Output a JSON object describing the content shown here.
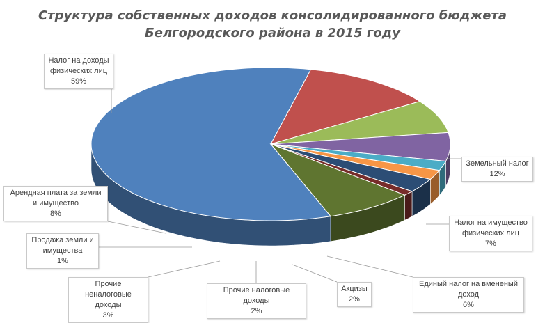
{
  "chart_data": {
    "type": "pie",
    "style": "3d",
    "title": [
      "Структура собственных доходов  консолидированного бюджета",
      "Белгородского района в 2015 году"
    ],
    "slices": [
      {
        "name": "Налог на доходы физических лиц",
        "value": 59,
        "label": "59%",
        "color": "#4f81bd"
      },
      {
        "name": "Земельный налог",
        "value": 12,
        "label": "12%",
        "color": "#c0504d"
      },
      {
        "name": "Налог на имущество физических лиц",
        "value": 7,
        "label": "7%",
        "color": "#9bbb59"
      },
      {
        "name": "Единый  налог на вмененый доход",
        "value": 6,
        "label": "6%",
        "color": "#8064a2"
      },
      {
        "name": "Акцизы",
        "value": 2,
        "label": "2%",
        "color": "#4bacc6"
      },
      {
        "name": "Прочие налоговые доходы",
        "value": 2,
        "label": "2%",
        "color": "#f79646"
      },
      {
        "name": "Прочие неналоговые доходы",
        "value": 3,
        "label": "3%",
        "color": "#2c4d75"
      },
      {
        "name": "Продажа земли и имущества",
        "value": 1,
        "label": "1%",
        "color": "#772c2a"
      },
      {
        "name": "Арендная плата за земли и имущество",
        "value": 8,
        "label": "8%",
        "color": "#5f7530"
      }
    ]
  }
}
